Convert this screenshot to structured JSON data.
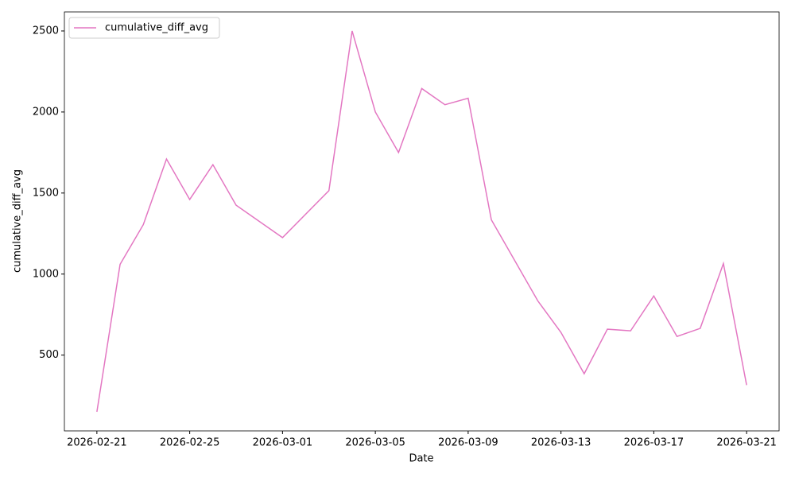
{
  "chart_data": {
    "type": "line",
    "x_label": "Date",
    "y_label": "cumulative_diff_avg",
    "x": [
      "2026-02-21",
      "2026-02-22",
      "2026-02-23",
      "2026-02-24",
      "2026-02-25",
      "2026-02-26",
      "2026-02-27",
      "2026-03-01",
      "2026-03-03",
      "2026-03-04",
      "2026-03-05",
      "2026-03-06",
      "2026-03-07",
      "2026-03-08",
      "2026-03-09",
      "2026-03-10",
      "2026-03-12",
      "2026-03-13",
      "2026-03-14",
      "2026-03-15",
      "2026-03-16",
      "2026-03-17",
      "2026-03-18",
      "2026-03-19",
      "2026-03-20",
      "2026-03-21"
    ],
    "series": [
      {
        "name": "cumulative_diff_avg",
        "color": "#e377c2",
        "values": [
          150,
          1060,
          1305,
          1710,
          1460,
          1675,
          1425,
          1225,
          1515,
          2500,
          2000,
          1750,
          2145,
          2045,
          2085,
          1335,
          835,
          640,
          385,
          660,
          650,
          865,
          615,
          665,
          1065,
          315
        ]
      }
    ],
    "xlim": [
      "2026-02-19T14:24:00Z",
      "2026-03-22T09:36:00Z"
    ],
    "xticks": [
      "2026-02-21",
      "2026-02-25",
      "2026-03-01",
      "2026-03-05",
      "2026-03-09",
      "2026-03-13",
      "2026-03-17",
      "2026-03-21"
    ],
    "ylim": [
      32.5,
      2617.5
    ],
    "yticks": [
      500,
      1000,
      1500,
      2000,
      2500
    ],
    "grid": false,
    "legend": "upper left"
  }
}
